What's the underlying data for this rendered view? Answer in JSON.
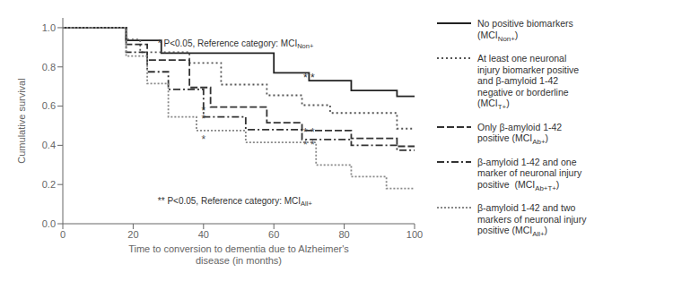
{
  "chart_data": {
    "type": "line",
    "xlabel": "Time to conversion to dementia due to Alzheimer's\ndisease (in months)",
    "ylabel": "Cumulative survival",
    "xlim": [
      0,
      100
    ],
    "ylim": [
      0.0,
      1.05
    ],
    "xticks": [
      0,
      20,
      40,
      60,
      80,
      100
    ],
    "yticks": [
      {
        "value": 0.0,
        "label": "0.0"
      },
      0.2,
      0.4,
      0.6,
      0.8,
      {
        "value": 1.0,
        "label": "1.0"
      }
    ],
    "legend": "right",
    "series": [
      {
        "name": "No positive biomarkers\n(MCINon+)",
        "name_sub": "Non+",
        "color": "#222222",
        "line_style": "solid",
        "x": [
          0,
          18,
          18,
          28,
          28,
          60,
          60,
          70,
          70,
          82,
          82,
          95,
          95,
          100
        ],
        "values": [
          1.0,
          1.0,
          0.935,
          0.935,
          0.87,
          0.87,
          0.77,
          0.77,
          0.73,
          0.73,
          0.68,
          0.68,
          0.65,
          0.65
        ]
      },
      {
        "name": "At least one neuronal\ninjury biomarker positive\nand β-amyloid 1-42\nnegative or borderline\n(MCIT+)",
        "name_sub": "T+",
        "color": "#555555",
        "line_style": "dotted",
        "x": [
          0,
          18,
          18,
          22,
          22,
          36,
          36,
          45,
          45,
          58,
          58,
          68,
          68,
          76,
          76,
          95,
          95,
          100
        ],
        "values": [
          1.0,
          1.0,
          0.94,
          0.94,
          0.875,
          0.875,
          0.82,
          0.82,
          0.71,
          0.71,
          0.655,
          0.655,
          0.605,
          0.605,
          0.565,
          0.565,
          0.485,
          0.485
        ]
      },
      {
        "name": "Only β-amyloid 1-42\npositive (MCIAb+)",
        "name_sub": "Ab+",
        "color": "#333333",
        "line_style": "dashed",
        "x": [
          0,
          18,
          18,
          24,
          24,
          36,
          36,
          42,
          42,
          58,
          58,
          68,
          68,
          82,
          82,
          95,
          95,
          100
        ],
        "values": [
          1.0,
          1.0,
          0.915,
          0.915,
          0.835,
          0.835,
          0.695,
          0.695,
          0.595,
          0.595,
          0.515,
          0.515,
          0.475,
          0.475,
          0.435,
          0.435,
          0.395,
          0.395
        ]
      },
      {
        "name": "β-amyloid 1-42 and one\nmarker of neuronal injury\npositive  (MCIAb+T+)",
        "name_sub": "Ab+T+",
        "color": "#333333",
        "line_style": "dashdot",
        "x": [
          0,
          18,
          18,
          24,
          24,
          30,
          30,
          40,
          40,
          52,
          52,
          68,
          68,
          82,
          82,
          95,
          95,
          100
        ],
        "values": [
          1.0,
          1.0,
          0.875,
          0.875,
          0.775,
          0.775,
          0.685,
          0.685,
          0.545,
          0.545,
          0.48,
          0.48,
          0.43,
          0.43,
          0.4,
          0.4,
          0.375,
          0.375
        ]
      },
      {
        "name": "β-amyloid 1-42 and two\nmarkers of neuronal injury\npositive (MCIAll+)",
        "name_sub": "All+",
        "color": "#888888",
        "line_style": "densely_dotted",
        "x": [
          0,
          18,
          18,
          24,
          24,
          30,
          30,
          38,
          38,
          52,
          52,
          72,
          72,
          82,
          82,
          92,
          92,
          100
        ],
        "values": [
          1.0,
          1.0,
          0.855,
          0.855,
          0.715,
          0.715,
          0.545,
          0.545,
          0.475,
          0.475,
          0.415,
          0.415,
          0.3,
          0.3,
          0.24,
          0.24,
          0.18,
          0.18
        ]
      }
    ],
    "annotations": [
      {
        "text": "*",
        "x": 40,
        "y": 0.575,
        "color": "#333333"
      },
      {
        "text": "*",
        "x": 40,
        "y": 0.535,
        "color": "#444444"
      },
      {
        "text": "*",
        "x": 40,
        "y": 0.43,
        "color": "#555555"
      },
      {
        "text": "* *",
        "x": 70,
        "y": 0.745,
        "color": "#333333"
      },
      {
        "text": "* *",
        "x": 70,
        "y": 0.465,
        "color": "#444444"
      },
      {
        "text": "* *",
        "x": 70,
        "y": 0.4,
        "color": "#555555"
      },
      {
        "text": "* P<0.05, Reference category: MCINon+",
        "sub": "Non+",
        "x": 27,
        "y": 0.92,
        "color": "#333333",
        "align": "left"
      },
      {
        "text": "** P<0.05, Reference category: MCIAll+",
        "sub": "All+",
        "x": 27,
        "y": 0.12,
        "color": "#333333",
        "align": "left"
      }
    ]
  }
}
